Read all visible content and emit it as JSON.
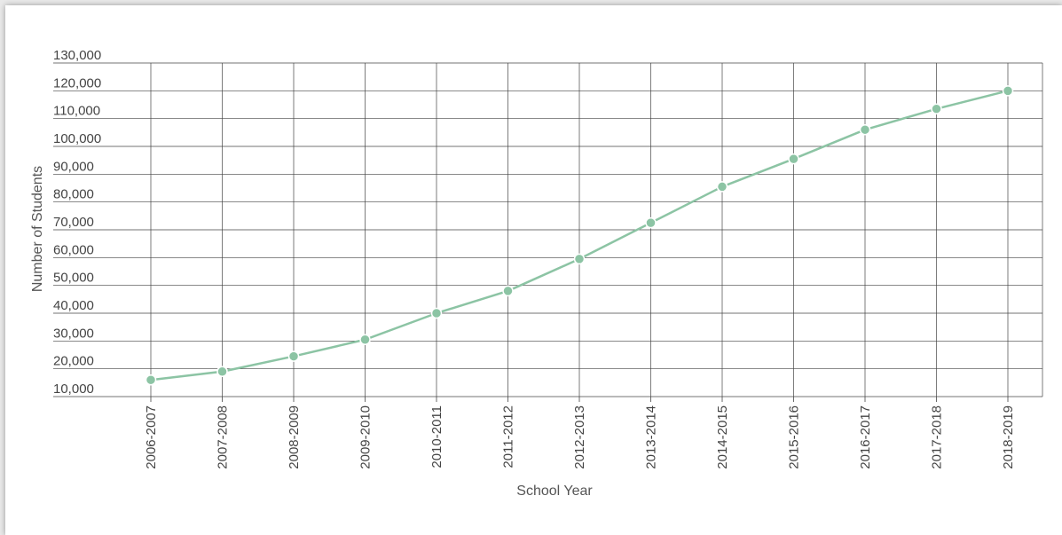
{
  "chart_data": {
    "type": "line",
    "title": "",
    "xlabel": "School Year",
    "ylabel": "Number of Students",
    "categories": [
      "2006-2007",
      "2007-2008",
      "2008-2009",
      "2009-2010",
      "2010-2011",
      "2011-2012",
      "2012-2013",
      "2013-2014",
      "2014-2015",
      "2015-2016",
      "2016-2017",
      "2017-2018",
      "2018-2019"
    ],
    "series": [
      {
        "values": [
          16000,
          19000,
          24500,
          30500,
          40000,
          48000,
          59500,
          72500,
          85500,
          95500,
          106000,
          113500,
          120000
        ]
      }
    ],
    "ylim": [
      10000,
      130000
    ],
    "yticks": [
      10000,
      20000,
      30000,
      40000,
      50000,
      60000,
      70000,
      80000,
      90000,
      100000,
      110000,
      120000,
      130000
    ],
    "ytick_labels": [
      "10,000",
      "20,000",
      "30,000",
      "40,000",
      "50,000",
      "60,000",
      "70,000",
      "80,000",
      "90,000",
      "100,000",
      "110,000",
      "120,000",
      "130,000"
    ],
    "grid": true,
    "legend": "none",
    "colors": {
      "line": "#8cc4a4",
      "marker": "#8cc4a4",
      "grid": "#444444"
    }
  }
}
